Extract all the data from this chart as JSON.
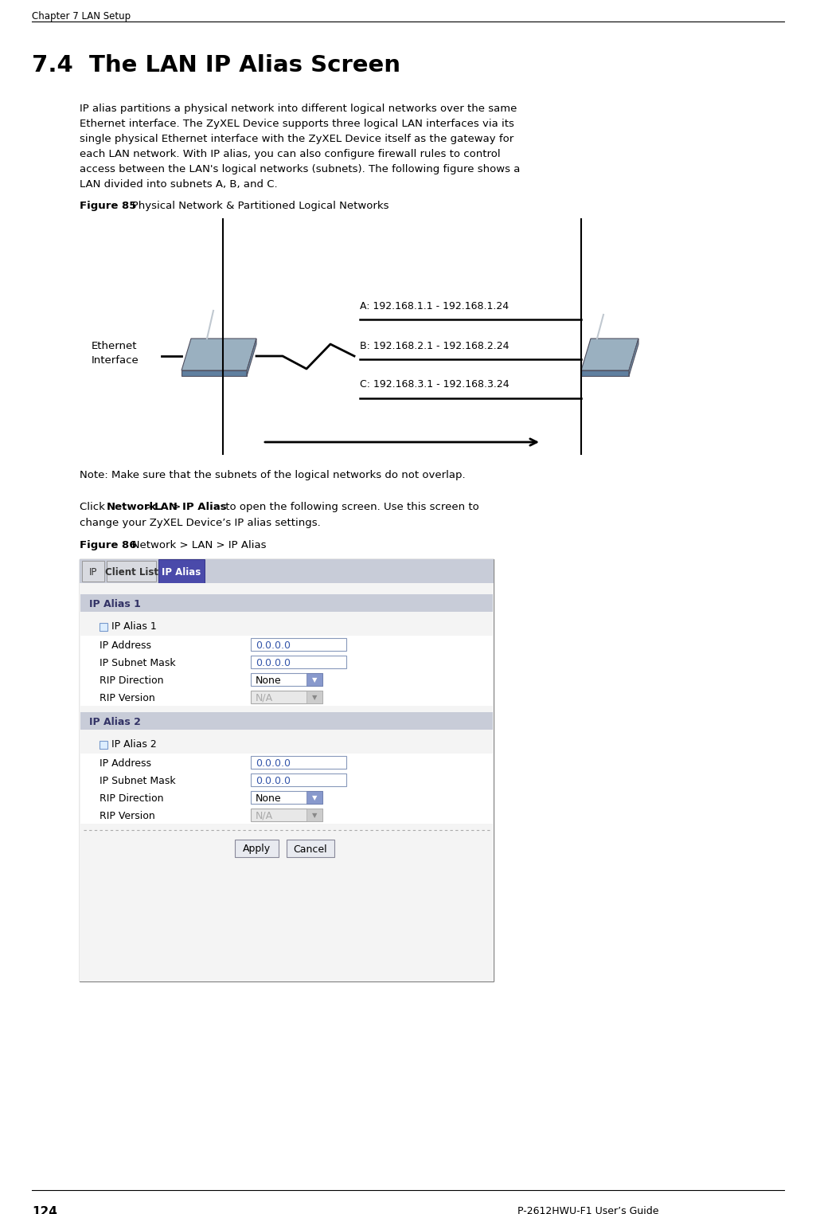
{
  "page_title": "Chapter 7 LAN Setup",
  "page_footer": "P-2612HWU-F1 User’s Guide",
  "page_number": "124",
  "section_title": "7.4  The LAN IP Alias Screen",
  "body_text_lines": [
    "IP alias partitions a physical network into different logical networks over the same",
    "Ethernet interface. The ZyXEL Device supports three logical LAN interfaces via its",
    "single physical Ethernet interface with the ZyXEL Device itself as the gateway for",
    "each LAN network. With IP alias, you can also configure firewall rules to control",
    "access between the LAN's logical networks (subnets). The following figure shows a",
    "LAN divided into subnets A, B, and C."
  ],
  "figure85_label": "Figure 85",
  "figure85_title": "   Physical Network & Partitioned Logical Networks",
  "ethernet_label": "Ethernet\nInterface",
  "subnet_a": "A: 192.168.1.1 - 192.168.1.24",
  "subnet_b": "B: 192.168.2.1 - 192.168.2.24",
  "subnet_c": "C: 192.168.3.1 - 192.168.3.24",
  "note_text": "Note: Make sure that the subnets of the logical networks do not overlap.",
  "click_line2": "change your ZyXEL Device’s IP alias settings.",
  "figure86_label": "Figure 86",
  "figure86_title": "   Network > LAN > IP Alias",
  "tab_ip": "IP",
  "tab_client": "Client List",
  "tab_alias": "IP Alias",
  "section1_label": "IP Alias 1",
  "checkbox1_label": "IP Alias 1",
  "row_labels": [
    "IP Address",
    "IP Subnet Mask",
    "RIP Direction",
    "RIP Version"
  ],
  "row_values": [
    "0.0.0.0",
    "0.0.0.0",
    "None",
    "N/A"
  ],
  "section2_label": "IP Alias 2",
  "checkbox2_label": "IP Alias 2",
  "row2_labels": [
    "IP Address",
    "IP Subnet Mask",
    "RIP Direction",
    "RIP Version"
  ],
  "row2_values": [
    "0.0.0.0",
    "0.0.0.0",
    "None",
    "N/A"
  ],
  "bg_color": "#ffffff",
  "tab_active_color": "#4444aa",
  "tab_inactive_color": "#c8c8c8",
  "tab_bar_color": "#d0d0d8",
  "section_header_color": "#c8ccd8",
  "input_white": "#ffffff",
  "input_blue_text": "#3355aa",
  "dropdown_bg": "#e8eef8",
  "dropdown_text": "#888888",
  "screen_bg": "#f0f0f0",
  "screen_content_bg": "#ffffff",
  "device_light": "#9ab0c0",
  "device_dark": "#6080a0"
}
